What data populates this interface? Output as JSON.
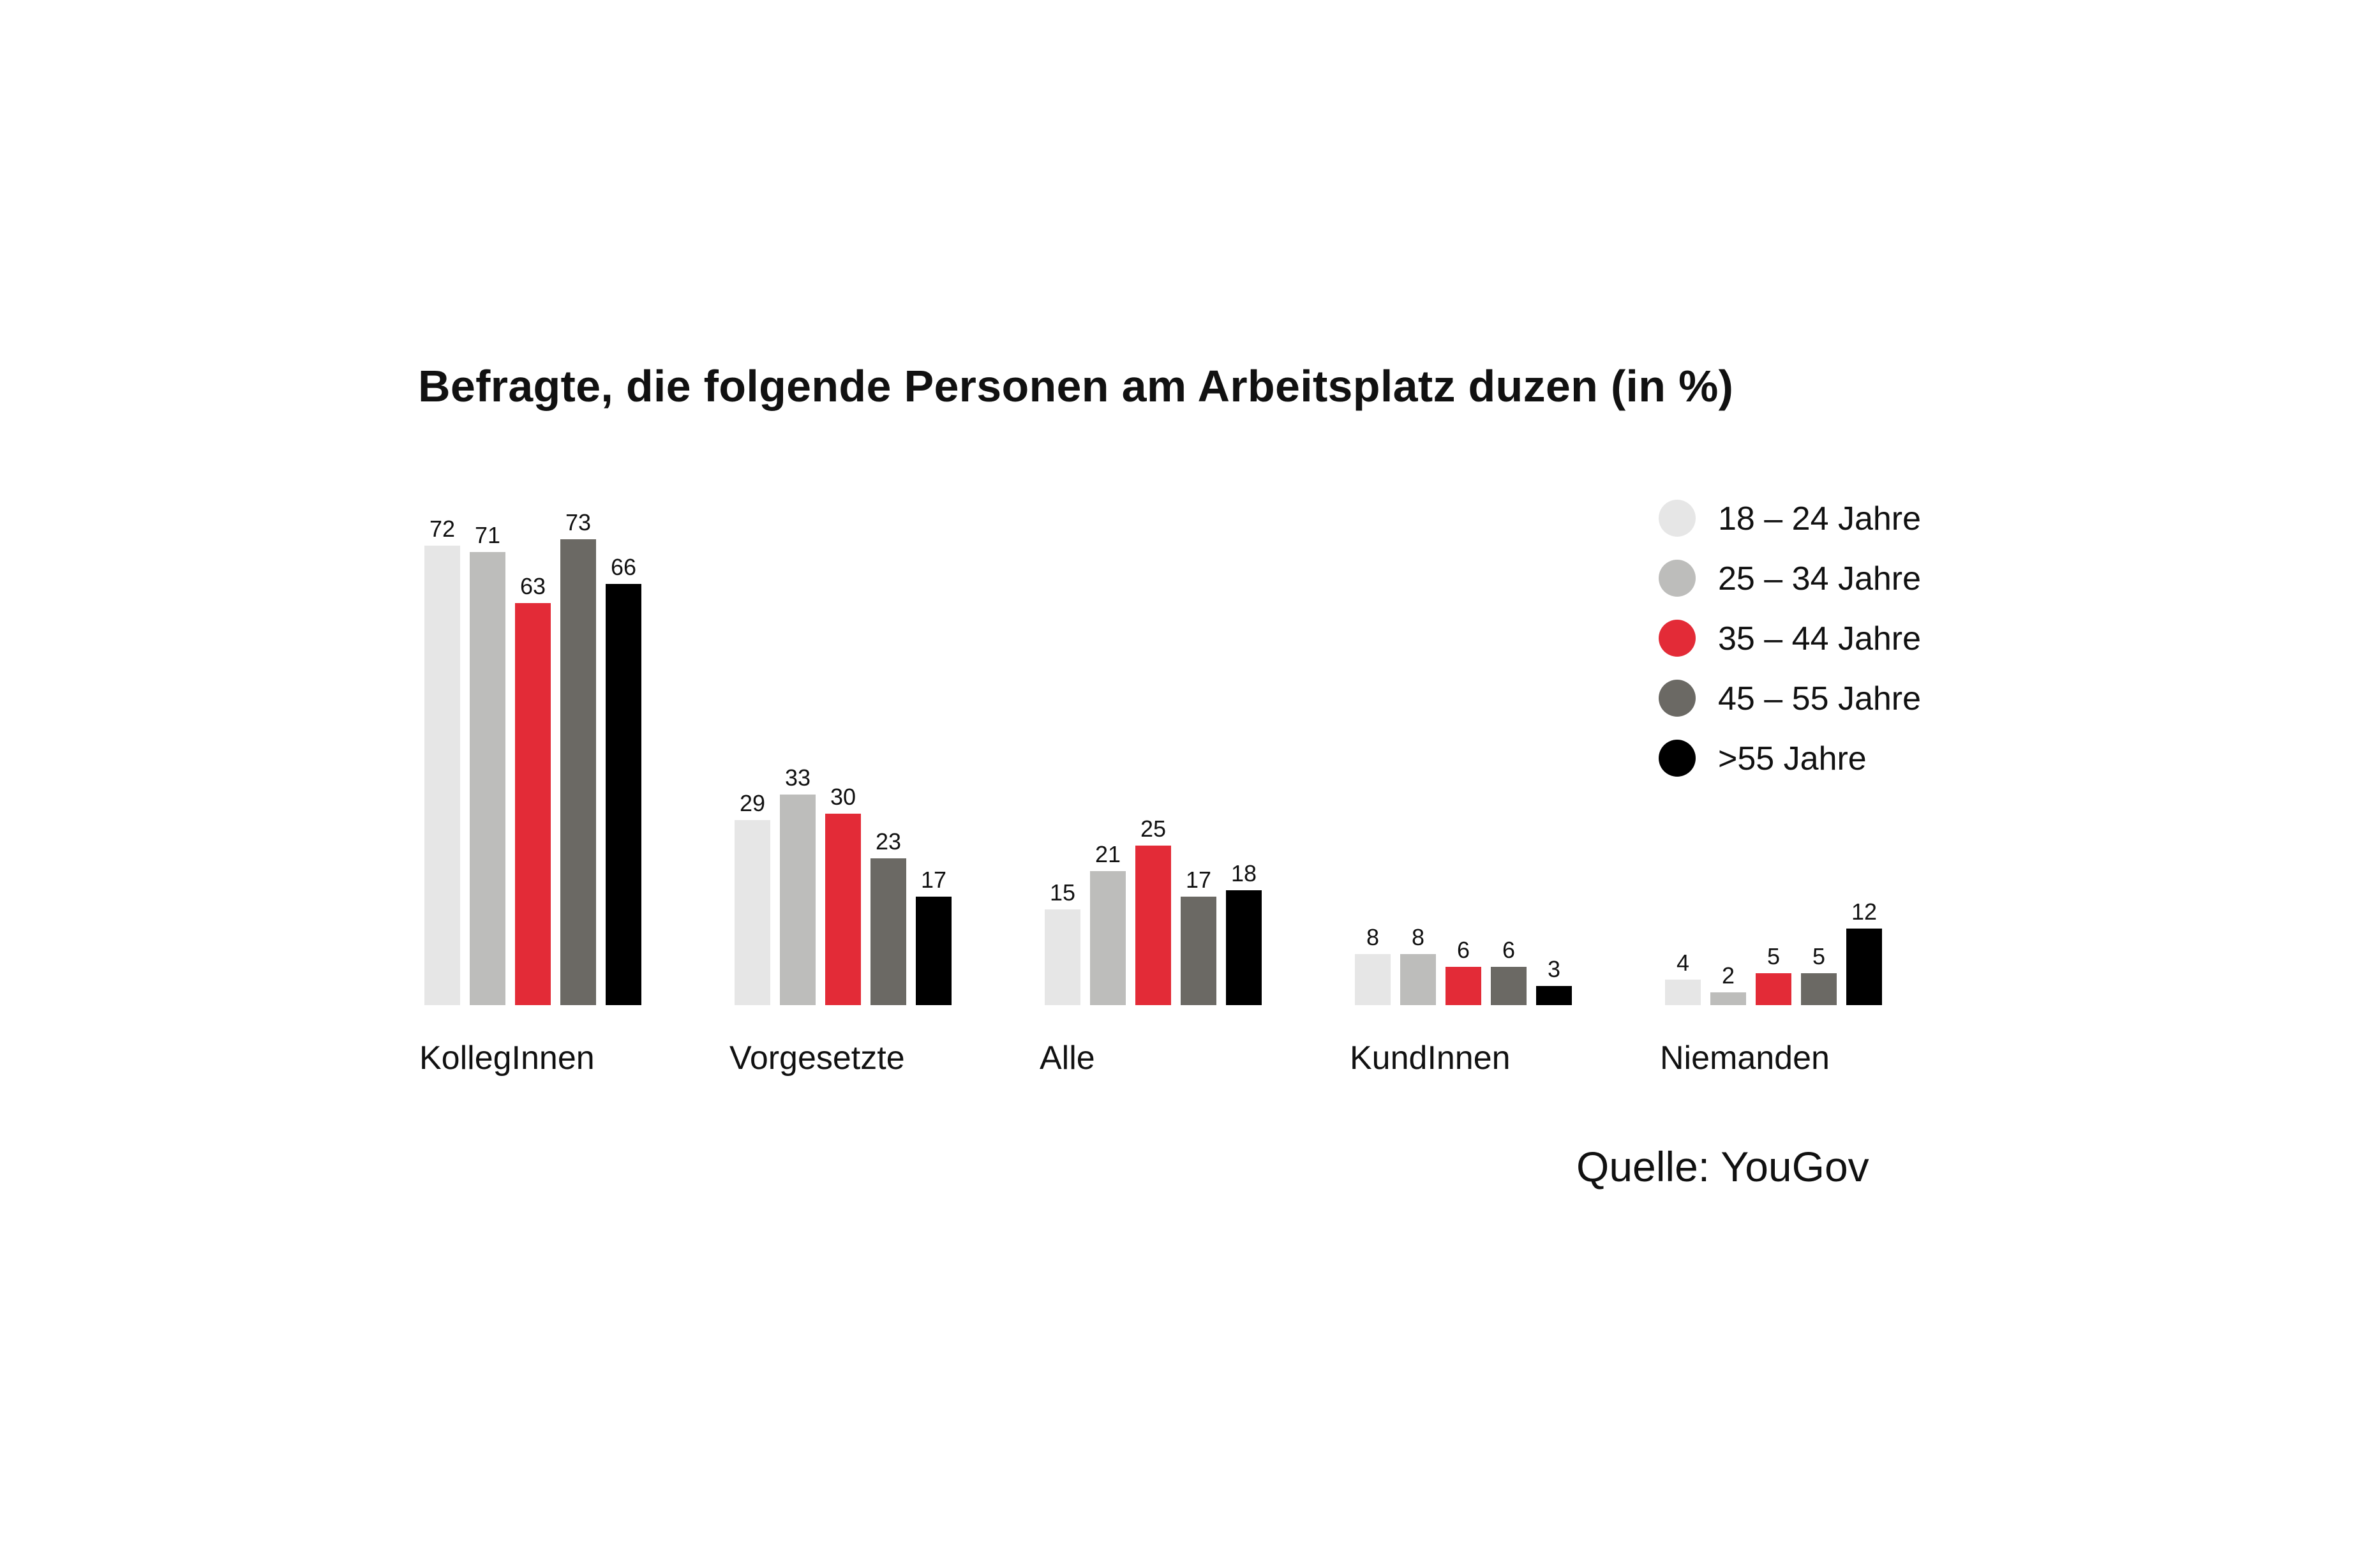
{
  "title": "Befragte, die folgende Personen am Arbeitsplatz duzen (in %)",
  "source": "Quelle: YouGov",
  "chart_data": {
    "type": "bar",
    "title": "Befragte, die folgende Personen am Arbeitsplatz duzen (in %)",
    "xlabel": "",
    "ylabel": "",
    "ylim": [
      0,
      80
    ],
    "grid": false,
    "legend_position": "top-right",
    "categories": [
      "KollegInnen",
      "Vorgesetzte",
      "Alle",
      "KundInnen",
      "Niemanden"
    ],
    "series": [
      {
        "name": "18 – 24 Jahre",
        "color": "#e6e6e6",
        "values": [
          72,
          29,
          15,
          8,
          4
        ]
      },
      {
        "name": "25 – 34 Jahre",
        "color": "#bdbdbb",
        "values": [
          71,
          33,
          21,
          8,
          2
        ]
      },
      {
        "name": "35 – 44 Jahre",
        "color": "#e32b37",
        "values": [
          63,
          30,
          25,
          6,
          5
        ]
      },
      {
        "name": "45 – 55 Jahre",
        "color": "#6b6964",
        "values": [
          73,
          23,
          17,
          6,
          5
        ]
      },
      {
        "name": ">55 Jahre",
        "color": "#000000",
        "values": [
          66,
          17,
          18,
          3,
          12
        ]
      }
    ]
  }
}
